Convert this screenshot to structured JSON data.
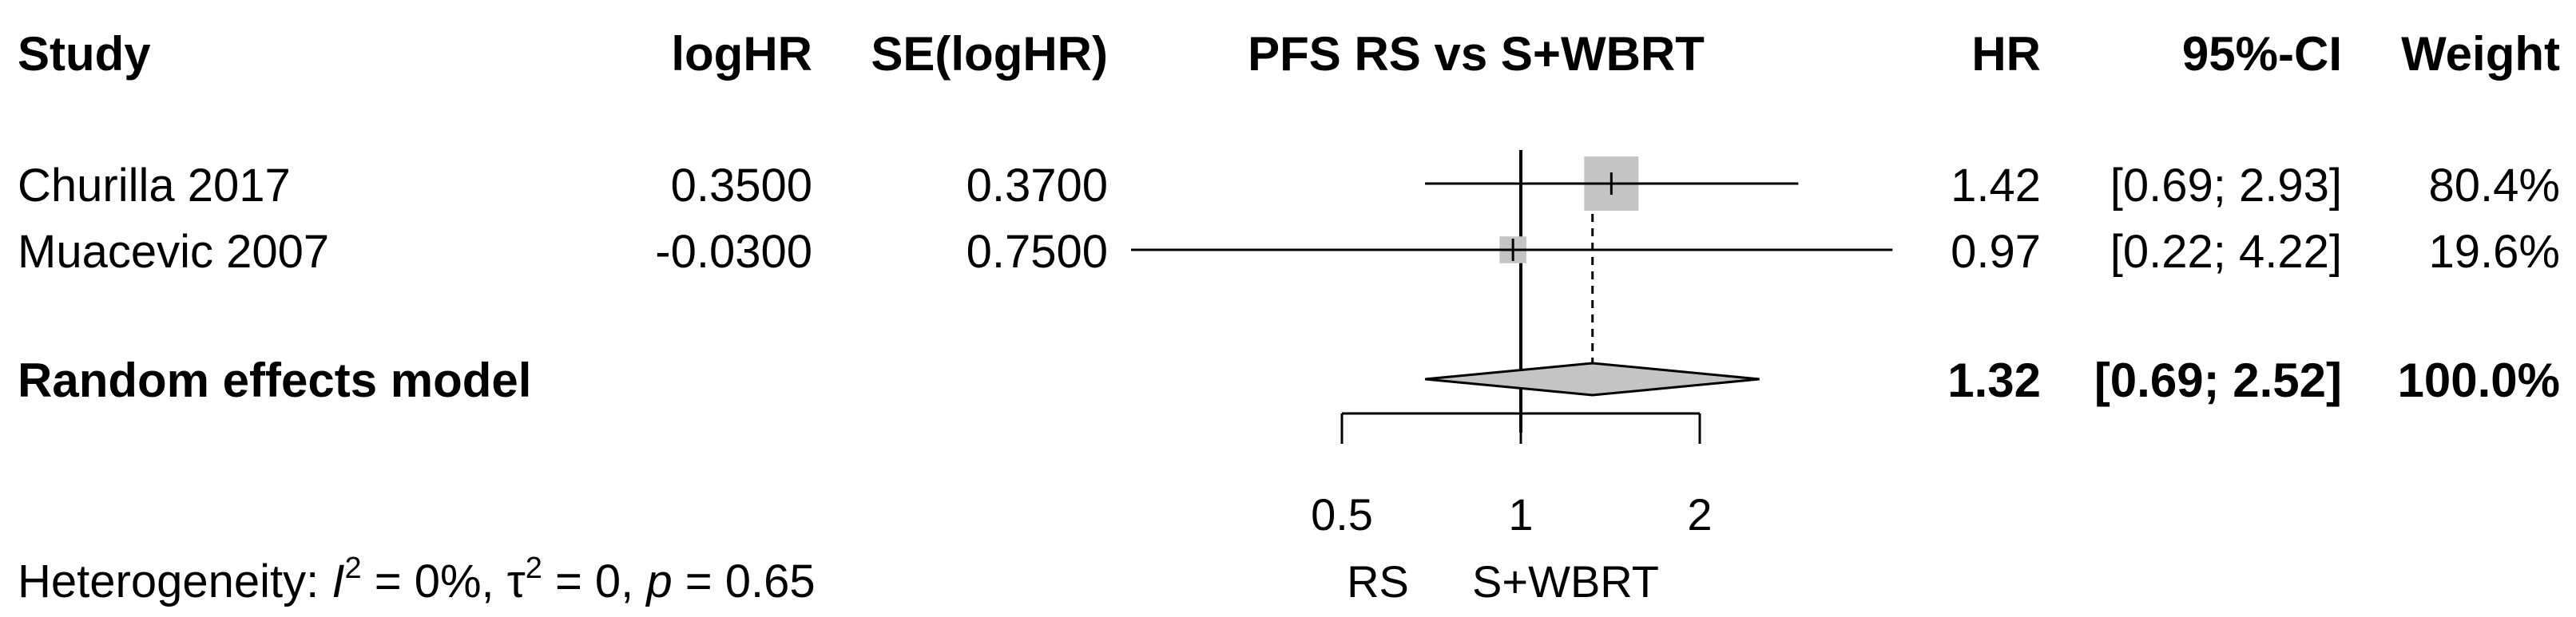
{
  "chart_data": {
    "type": "forest",
    "columns": {
      "study": "Study",
      "loghr": "logHR",
      "se": "SE(logHR)",
      "plot": "PFS RS vs S+WBRT",
      "hr": "HR",
      "ci": "95%-CI",
      "weight": "Weight"
    },
    "studies": [
      {
        "name": "Churilla 2017",
        "loghr": "0.3500",
        "se": "0.3700",
        "hr": 1.42,
        "lower": 0.69,
        "upper": 2.93,
        "hr_text": "1.42",
        "ci_text": "[0.69; 2.93]",
        "weight": 80.4,
        "weight_text": "80.4%"
      },
      {
        "name": "Muacevic 2007",
        "loghr": "-0.0300",
        "se": "0.7500",
        "hr": 0.97,
        "lower": 0.22,
        "upper": 4.22,
        "hr_text": "0.97",
        "ci_text": "[0.22; 4.22]",
        "weight": 19.6,
        "weight_text": "19.6%"
      }
    ],
    "pooled": {
      "name": "Random effects model",
      "hr": 1.32,
      "lower": 0.69,
      "upper": 2.52,
      "hr_text": "1.32",
      "ci_text": "[0.69; 2.52]",
      "weight_text": "100.0%"
    },
    "x_axis": {
      "scale": "log",
      "ticks": [
        0.5,
        1,
        2
      ],
      "tick_labels": [
        "0.5",
        "1",
        "2"
      ],
      "xlim": [
        0.5,
        2
      ],
      "null_value": 1,
      "label_left": "RS",
      "label_right": "S+WBRT"
    },
    "heterogeneity": {
      "prefix": "Heterogeneity: ",
      "i2_symbol": "I",
      "i2_value": " = 0%, ",
      "tau2_symbol": "τ",
      "tau2_value": " = 0, ",
      "p_symbol": "p",
      "p_value": " = 0.65"
    }
  }
}
